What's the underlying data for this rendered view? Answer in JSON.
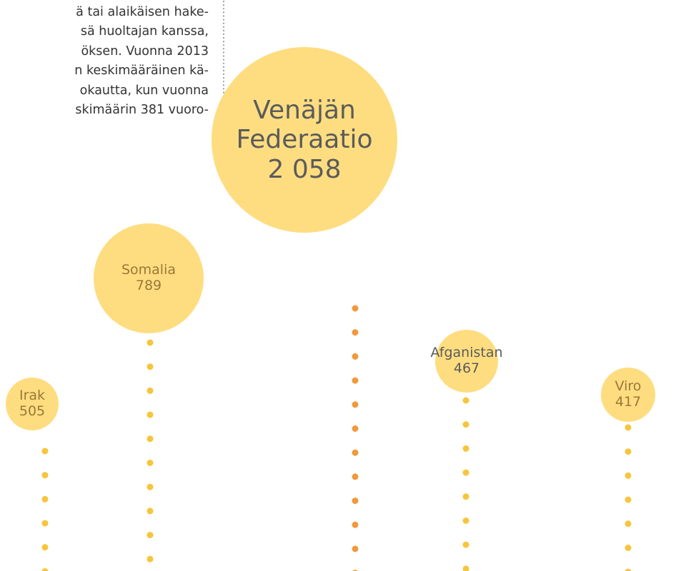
{
  "text_lines": [
    "ä tai alaikäisen hake-",
    "sä huoltajan kanssa,",
    "öksen. Vuonna 2013",
    "n keskimääräinen kä-",
    "okautta, kun vuonna",
    "skimäärin 381 vuoro-"
  ],
  "chart_data": {
    "type": "bubble",
    "categories": [
      "Irak",
      "Somalia",
      "Venäjän Federaatio",
      "Afganistan",
      "Viro"
    ],
    "values": [
      505,
      789,
      2058,
      467,
      417
    ],
    "value_labels": [
      "505",
      "789",
      "2 058",
      "467",
      "417"
    ],
    "color": "#fedd80"
  }
}
